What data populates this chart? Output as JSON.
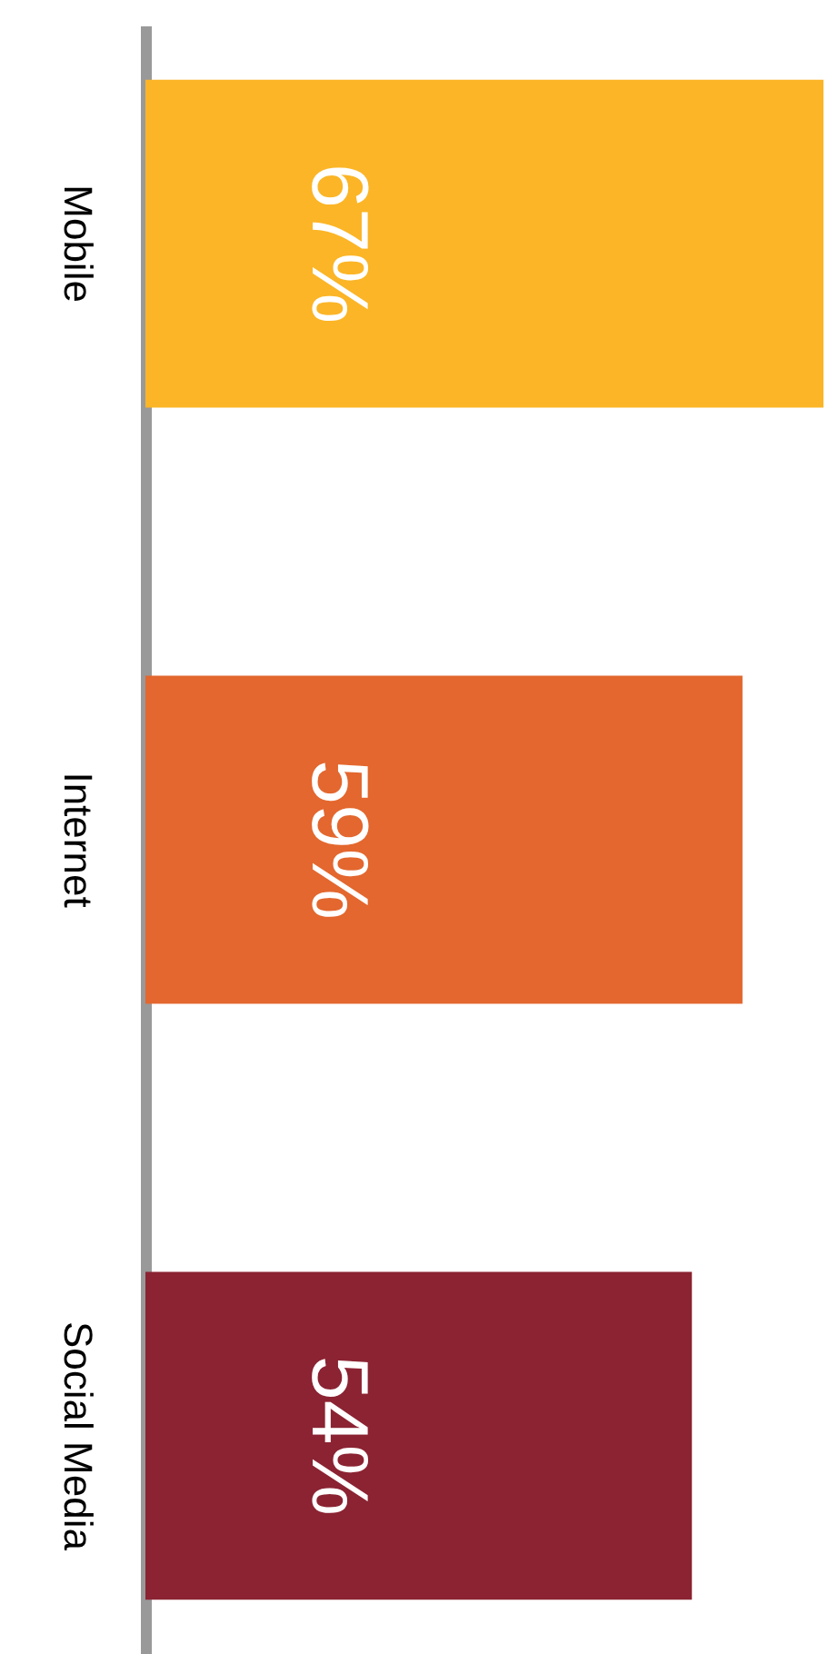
{
  "chart_data": {
    "type": "bar",
    "orientation": "horizontal",
    "categories": [
      "Mobile",
      "Internet",
      "Social Media"
    ],
    "values": [
      67,
      59,
      54
    ],
    "colors": [
      "#fbb526",
      "#e3672e",
      "#8b2332"
    ],
    "value_labels": [
      "67%",
      "59%",
      "54%"
    ],
    "tick_labels": "y",
    "grid": false
  }
}
